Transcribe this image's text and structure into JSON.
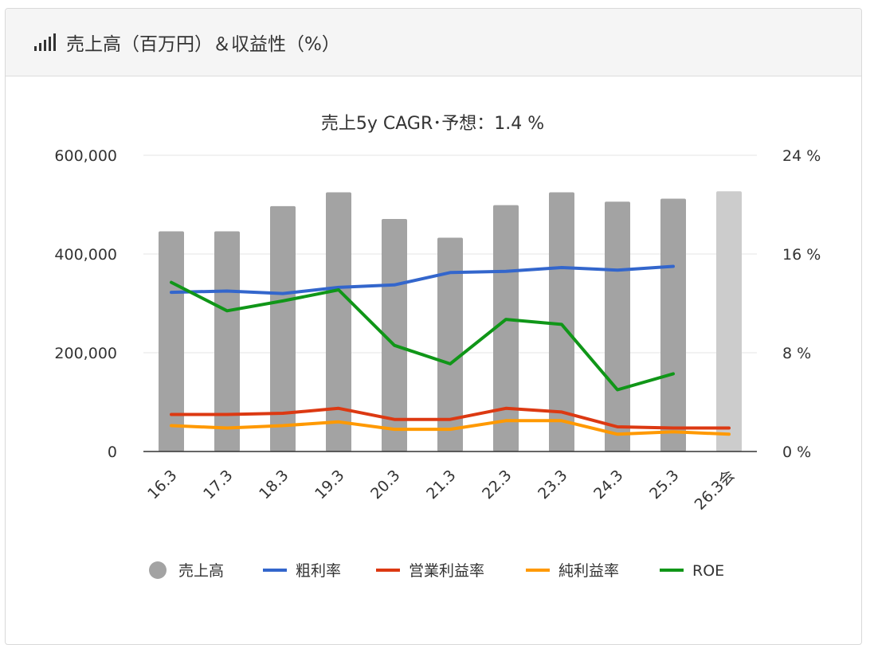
{
  "header": {
    "icon": "signal-bars-icon",
    "title": "売上高（百万円）＆収益性（%）"
  },
  "chart_data": {
    "type": "bar",
    "title": "売上5y CAGR･予想：1.4 %",
    "categories": [
      "16.3",
      "17.3",
      "18.3",
      "19.3",
      "20.3",
      "21.3",
      "22.3",
      "23.3",
      "24.3",
      "25.3",
      "26.3会"
    ],
    "y_left": {
      "range": [
        0,
        600000
      ],
      "ticks": [
        "0",
        "200,000",
        "400,000",
        "600,000"
      ]
    },
    "y_right": {
      "range": [
        0,
        24
      ],
      "ticks": [
        "0 %",
        "8 %",
        "16 %",
        "24 %"
      ]
    },
    "grid": true,
    "legend_position": "bottom",
    "series": [
      {
        "name": "売上高",
        "type": "bar",
        "axis": "left",
        "color": "#a3a3a3",
        "forecast_color": "#cccccc",
        "values": [
          446000,
          446000,
          497000,
          525000,
          471000,
          433000,
          499000,
          525000,
          506000,
          512000,
          527000
        ]
      },
      {
        "name": "粗利率",
        "type": "line",
        "axis": "right",
        "color": "#3366cc",
        "values": [
          12.9,
          13.0,
          12.8,
          13.3,
          13.5,
          14.5,
          14.6,
          14.9,
          14.7,
          15.0,
          null
        ]
      },
      {
        "name": "営業利益率",
        "type": "line",
        "axis": "right",
        "color": "#dc3912",
        "values": [
          3.0,
          3.0,
          3.1,
          3.5,
          2.6,
          2.6,
          3.5,
          3.2,
          2.0,
          1.9,
          1.9
        ]
      },
      {
        "name": "純利益率",
        "type": "line",
        "axis": "right",
        "color": "#ff9900",
        "values": [
          2.1,
          1.9,
          2.1,
          2.4,
          1.8,
          1.8,
          2.5,
          2.5,
          1.4,
          1.6,
          1.4
        ]
      },
      {
        "name": "ROE",
        "type": "line",
        "axis": "right",
        "color": "#109618",
        "values": [
          13.7,
          11.4,
          12.2,
          13.1,
          8.6,
          7.1,
          10.7,
          10.3,
          5.0,
          6.3,
          null
        ]
      }
    ]
  }
}
